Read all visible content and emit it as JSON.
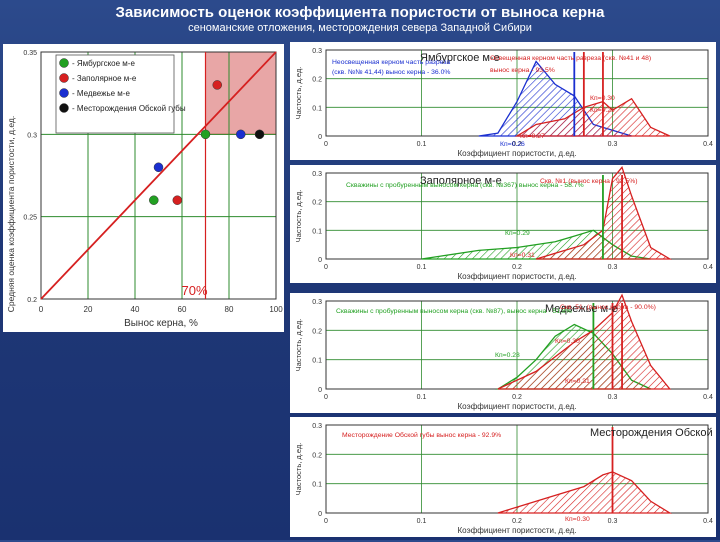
{
  "header": {
    "title": "Зависимость оценок коэффициента пористости от выноса керна",
    "subtitle": "сеноманские отложения, месторождения севера Западной Сибири"
  },
  "colors": {
    "background": "#1f3877",
    "panel": "#ffffff",
    "grid": "#2e8b2e",
    "red": "#d62020",
    "blue": "#1a2fd0",
    "green": "#22a022",
    "black": "#111111",
    "highlight": "#e8a6a6"
  },
  "scatter": {
    "ylabel": "Средняя оценка коэффициента пористости, д.ед.",
    "xlabel": "Вынос керна, %",
    "legend": [
      {
        "label": "- Ямбургское м-е",
        "color": "#22a022"
      },
      {
        "label": "- Заполярное м-е",
        "color": "#d62020"
      },
      {
        "label": "- Медвежье м-е",
        "color": "#1a2fd0"
      },
      {
        "label": "- Месторождения Обской губы",
        "color": "#111111"
      }
    ],
    "threshold_label": "70%",
    "y_ticks": [
      "0.35",
      "0.3",
      "0.25",
      "0.2"
    ],
    "x_ticks": [
      "0",
      "20",
      "40",
      "60",
      "80",
      "100"
    ]
  },
  "hist_common": {
    "ylabel": "Частость, д.ед.",
    "xlabel": "Коэффициент пористости, д.ед.",
    "x_ticks": [
      "0",
      "0.1",
      "0.2",
      "0.3",
      "0.4"
    ],
    "y_ticks": [
      "0.3",
      "0.2",
      "0.1",
      "0"
    ]
  },
  "histograms": [
    {
      "title": "Ямбургское м-е",
      "notes": [
        {
          "text": "Неосвещенная керном часть разреза",
          "color": "#1a2fd0"
        },
        {
          "text": "(скв. №№ 41,44) вынос керна - 36.0%",
          "color": "#1a2fd0"
        },
        {
          "text": "Освещенная керном часть разреза (скв. №41 и 48)",
          "color": "#d62020"
        },
        {
          "text": "вынос керна - 93.5%",
          "color": "#d62020"
        },
        {
          "text": "Кп=0.30",
          "color": "#d62020"
        },
        {
          "text": "Кп=0.29",
          "color": "#d62020"
        },
        {
          "text": "Кп=0.27",
          "color": "#d62020"
        },
        {
          "text": "Кп=0.26",
          "color": "#1a2fd0"
        }
      ]
    },
    {
      "title": "Заполярное м-е",
      "notes": [
        {
          "text": "Скважины с пробуренным выносом керна (скв. №367) вынос керна - 58.7%",
          "color": "#22a022"
        },
        {
          "text": "Скв. №1 (вынос керна - 93.5%)",
          "color": "#d62020"
        },
        {
          "text": "Кп=0.29",
          "color": "#22a022"
        },
        {
          "text": "Кп=0.31",
          "color": "#d62020"
        }
      ]
    },
    {
      "title": "Медвежье м-е",
      "notes": [
        {
          "text": "Скважины с пробуренным выносом керна (скв. №87), вынос керна - 51.8%",
          "color": "#22a022"
        },
        {
          "text": "Скв. 51, (вынос керна - 90.0%)",
          "color": "#d62020"
        },
        {
          "text": "Кп=0.30",
          "color": "#d62020"
        },
        {
          "text": "Кп=0.28",
          "color": "#22a022"
        },
        {
          "text": "Кп=0.31",
          "color": "#d62020"
        }
      ]
    },
    {
      "title": "Месторождения Обской губы",
      "notes": [
        {
          "text": "Месторождение Обской губы вынос керна - 92.9%",
          "color": "#d62020"
        },
        {
          "text": "Кп=0.30",
          "color": "#d62020"
        }
      ]
    }
  ],
  "chart_data": [
    {
      "type": "scatter",
      "title": "",
      "xlabel": "Вынос керна, %",
      "ylabel": "Средняя оценка коэффициента пористости, д.ед.",
      "xlim": [
        0,
        100
      ],
      "ylim": [
        0.2,
        0.35
      ],
      "series": [
        {
          "name": "Ямбургское м-е",
          "x": [
            48,
            70
          ],
          "y": [
            0.26,
            0.3
          ]
        },
        {
          "name": "Заполярное м-е",
          "x": [
            58,
            75
          ],
          "y": [
            0.26,
            0.33
          ]
        },
        {
          "name": "Медвежье м-е",
          "x": [
            50,
            85
          ],
          "y": [
            0.28,
            0.3
          ]
        },
        {
          "name": "Месторождения Обской губы",
          "x": [
            93
          ],
          "y": [
            0.3
          ]
        }
      ]
    }
  ]
}
